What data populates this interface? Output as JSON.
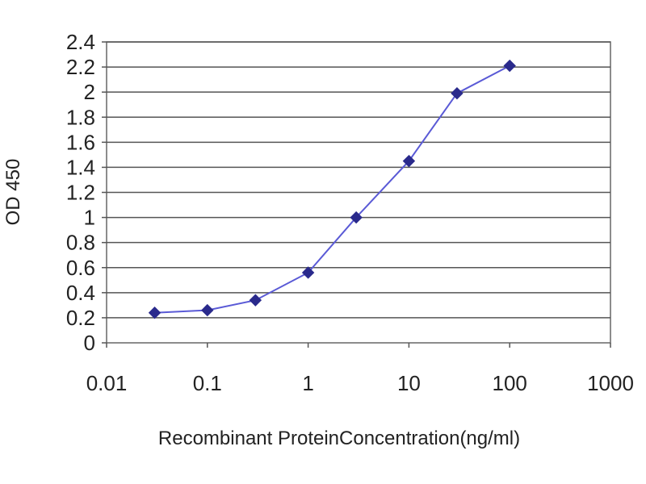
{
  "chart_data": {
    "type": "line",
    "title": "",
    "xlabel": "Recombinant ProteinConcentration(ng/ml)",
    "ylabel": "OD 450",
    "x_scale": "log",
    "xlim": [
      0.01,
      1000
    ],
    "ylim": [
      0,
      2.4
    ],
    "x_ticks": [
      "0.01",
      "0.1",
      "1",
      "10",
      "100",
      "1000"
    ],
    "y_ticks": [
      "0",
      "0.2",
      "0.4",
      "0.6",
      "0.8",
      "1",
      "1.2",
      "1.4",
      "1.6",
      "1.8",
      "2",
      "2.2",
      "2.4"
    ],
    "grid": true,
    "legend": "none",
    "series": [
      {
        "color": "#2a2a8c",
        "x": [
          0.03,
          0.1,
          0.3,
          1,
          3,
          10,
          30,
          100
        ],
        "y": [
          0.24,
          0.26,
          0.34,
          0.56,
          1.0,
          1.45,
          1.99,
          2.21
        ]
      }
    ]
  }
}
